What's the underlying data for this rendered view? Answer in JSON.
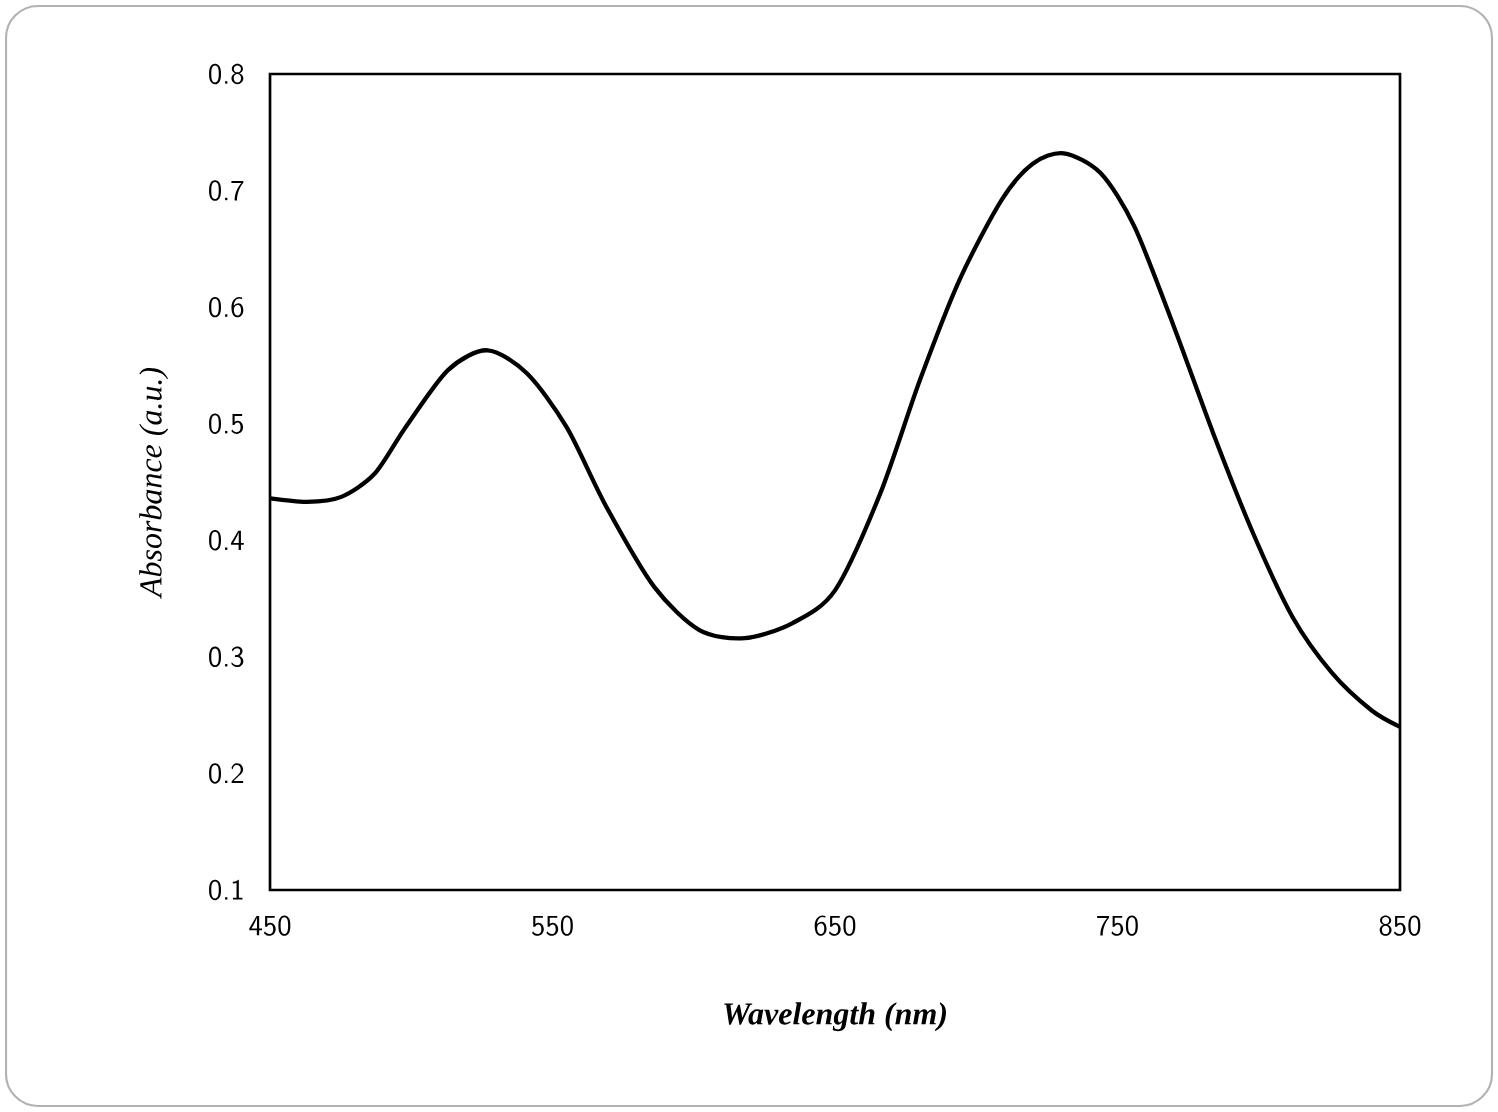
{
  "chart_data": {
    "type": "line",
    "xlabel": "Wavelength (nm)",
    "ylabel": "Absorbance (a.u.)",
    "xlim": [
      450,
      850
    ],
    "xticks": [
      450,
      550,
      650,
      750,
      850
    ],
    "ylim": [
      0.1,
      0.8
    ],
    "yticks": [
      0.1,
      0.2,
      0.3,
      0.4,
      0.5,
      0.6,
      0.7,
      0.8
    ],
    "x": [
      450,
      463,
      475,
      487,
      498,
      513,
      527,
      541,
      555,
      569,
      586,
      602,
      618,
      635,
      650,
      666,
      680,
      694,
      709,
      720,
      731,
      744,
      756,
      770,
      784,
      798,
      812,
      826,
      840,
      850
    ],
    "series": [
      {
        "color": "#000000",
        "values": [
          0.436,
          0.433,
          0.437,
          0.457,
          0.497,
          0.546,
          0.563,
          0.543,
          0.497,
          0.429,
          0.36,
          0.323,
          0.316,
          0.329,
          0.357,
          0.44,
          0.537,
          0.623,
          0.692,
          0.723,
          0.732,
          0.715,
          0.669,
          0.583,
          0.491,
          0.406,
          0.334,
          0.286,
          0.254,
          0.24
        ]
      }
    ],
    "grid": false,
    "marker": "none",
    "line_style": "solid"
  }
}
